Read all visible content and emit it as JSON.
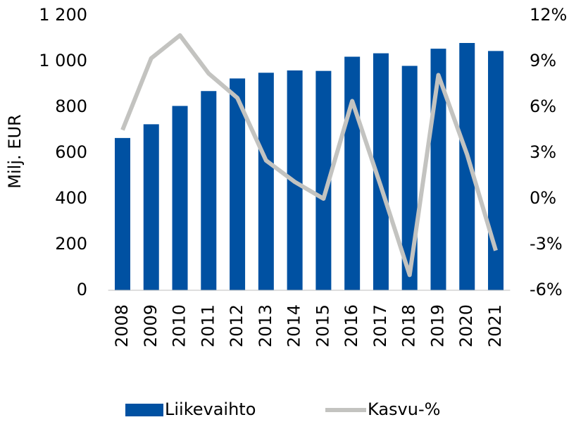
{
  "chart_data": {
    "type": "bar",
    "ylabel": "Milj. EUR",
    "categories": [
      "2008",
      "2009",
      "2010",
      "2011",
      "2012",
      "2013",
      "2014",
      "2015",
      "2016",
      "2017",
      "2018",
      "2019",
      "2020",
      "2021"
    ],
    "series": [
      {
        "name": "Liikevaihto",
        "type": "bar",
        "color": "#0051a2",
        "values": [
          665,
          725,
          805,
          870,
          925,
          950,
          960,
          958,
          1020,
          1035,
          980,
          1055,
          1080,
          1045
        ]
      },
      {
        "name": "Kasvu-%",
        "type": "line",
        "axis": "y2",
        "color": "#c3c3c0",
        "values": [
          4.5,
          9.2,
          10.7,
          8.2,
          6.6,
          2.5,
          1.1,
          0.0,
          6.4,
          0.8,
          -5.0,
          8.1,
          2.9,
          -3.4
        ]
      }
    ],
    "ylim": [
      0,
      1200
    ],
    "yticks": [
      0,
      200,
      400,
      600,
      800,
      {
        "value": 1000,
        "label": "1 000"
      },
      {
        "value": 1200,
        "label": "1 200"
      }
    ],
    "y2lim": [
      -6,
      12
    ],
    "y2ticks": [
      {
        "value": -6,
        "label": "-6%"
      },
      {
        "value": -3,
        "label": "-3%"
      },
      {
        "value": 0,
        "label": "0%"
      },
      {
        "value": 3,
        "label": "3%"
      },
      {
        "value": 6,
        "label": "6%"
      },
      {
        "value": 9,
        "label": "9%"
      },
      {
        "value": 12,
        "label": "12%"
      }
    ],
    "legend": "bottom"
  }
}
